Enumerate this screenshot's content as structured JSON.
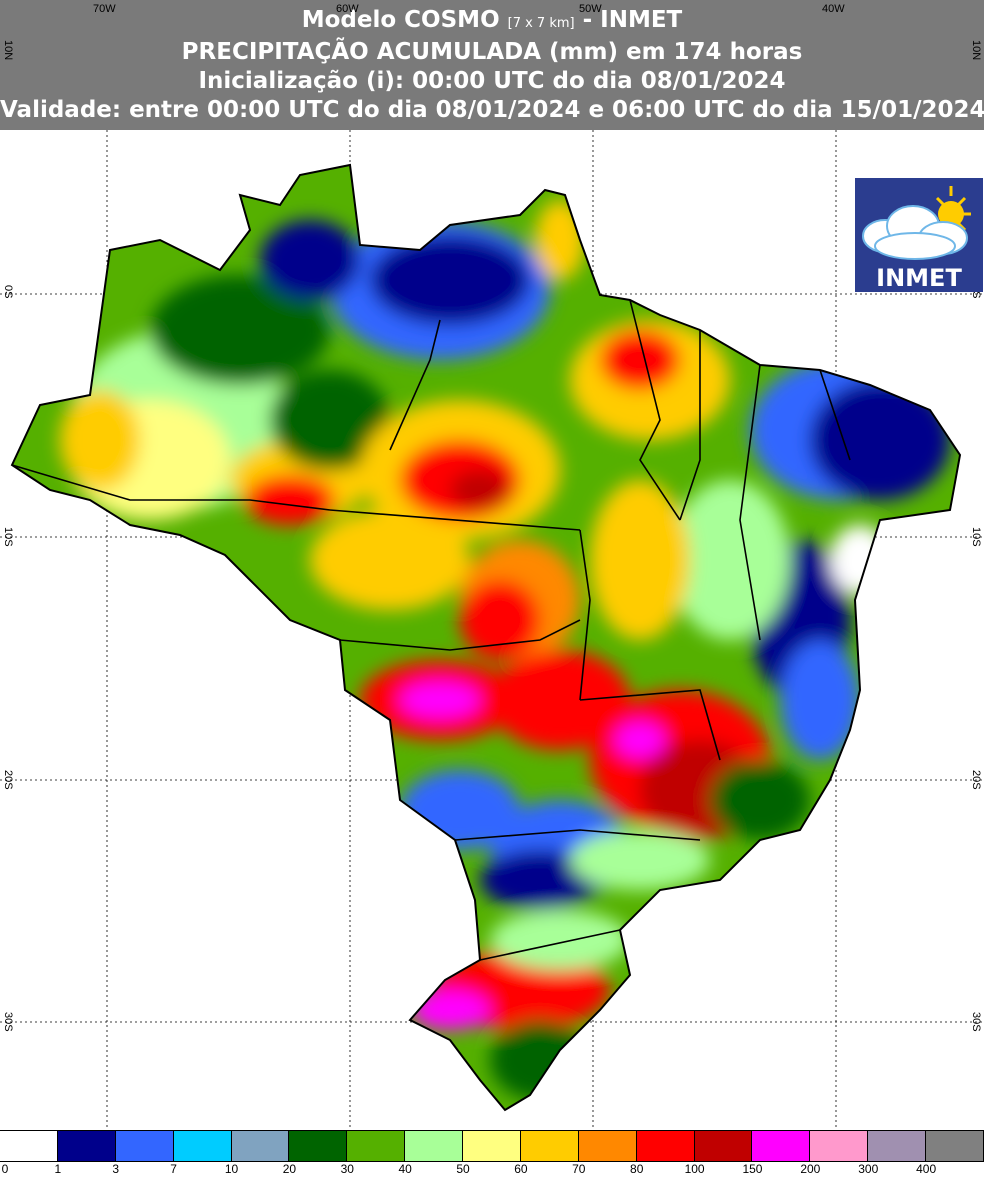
{
  "header": {
    "line1_main": "Modelo COSMO ",
    "line1_small": "[7 x 7 km]",
    "line1_suffix": " - INMET",
    "line2": "PRECIPITAÇÃO ACUMULADA (mm) em 174 horas",
    "line3": "Inicialização (i): 00:00 UTC do dia 08/01/2024",
    "line4": "Validade: entre 00:00 UTC do dia 08/01/2024 e 06:00 UTC do dia 15/01/2024"
  },
  "axes": {
    "lon_labels": [
      "70W",
      "60W",
      "50W",
      "40W"
    ],
    "lat_labels": [
      "10N",
      "0S",
      "10S",
      "20S",
      "30S"
    ]
  },
  "logo": {
    "text": "INMET",
    "icon": "cloud-sun-icon"
  },
  "legend": {
    "colors": [
      "#ffffff",
      "#00008b",
      "#3366ff",
      "#00ccff",
      "#80a3c0",
      "#006400",
      "#55b000",
      "#a8ff98",
      "#ffff80",
      "#ffcc00",
      "#ff8800",
      "#ff0000",
      "#c00000",
      "#ff00ff",
      "#ff99cc",
      "#a090b0",
      "#808080"
    ],
    "labels": [
      "0",
      "1",
      "3",
      "7",
      "10",
      "20",
      "30",
      "40",
      "50",
      "60",
      "70",
      "80",
      "100",
      "150",
      "200",
      "300",
      "400"
    ]
  }
}
